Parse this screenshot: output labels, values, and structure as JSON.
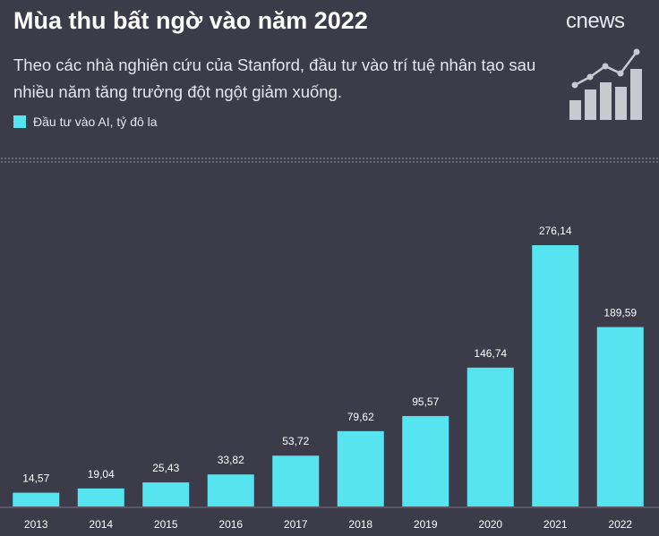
{
  "chart_data": {
    "type": "bar",
    "title": "Mùa thu bất ngờ vào năm 2022",
    "logo": "cnews",
    "subtitle": "Theo các nhà nghiên cứu của Stanford, đầu tư vào trí tuệ nhân tạo sau nhiều năm tăng trưởng đột ngột giảm xuống.",
    "categories": [
      "2013",
      "2014",
      "2015",
      "2016",
      "2017",
      "2018",
      "2019",
      "2020",
      "2021",
      "2022"
    ],
    "series": [
      {
        "name": "Đầu tư vào AI, tỷ đô la",
        "color": "#56e4f0",
        "values": [
          14.57,
          19.04,
          25.43,
          33.82,
          53.72,
          79.62,
          95.57,
          146.74,
          276.14,
          189.59
        ],
        "value_labels": [
          "14,57",
          "19,04",
          "25,43",
          "33,82",
          "53,72",
          "79,62",
          "95,57",
          "146,74",
          "276,14",
          "189,59"
        ]
      }
    ]
  }
}
